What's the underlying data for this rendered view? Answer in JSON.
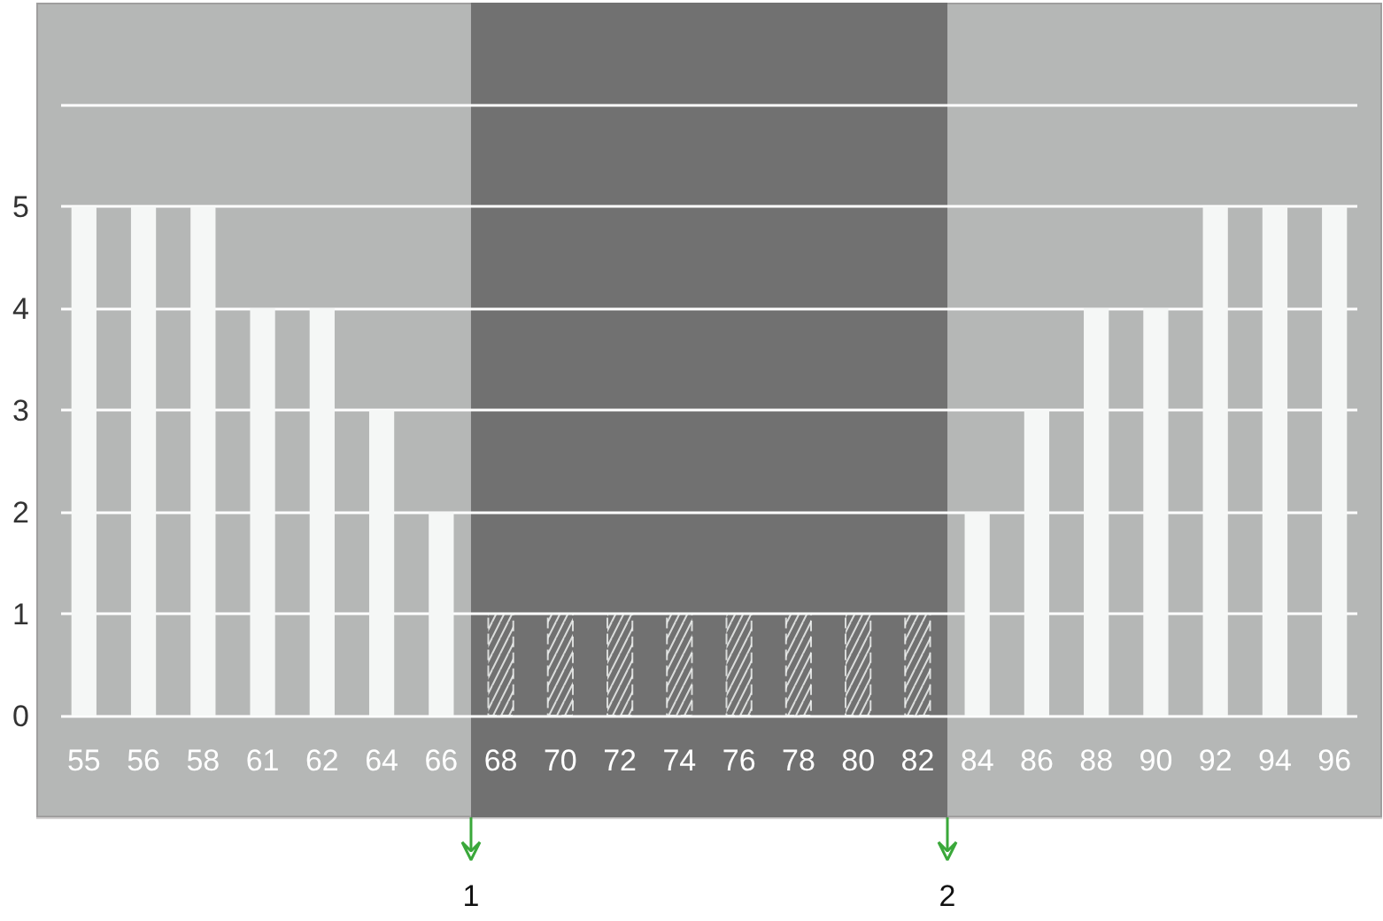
{
  "chart_data": {
    "type": "bar",
    "categories": [
      "55",
      "56",
      "58",
      "61",
      "62",
      "64",
      "66",
      "68",
      "70",
      "72",
      "74",
      "76",
      "78",
      "80",
      "82",
      "84",
      "86",
      "88",
      "90",
      "92",
      "94",
      "96"
    ],
    "values": [
      5,
      5,
      5,
      4,
      4,
      3,
      2,
      1,
      1,
      1,
      1,
      1,
      1,
      1,
      1,
      2,
      3,
      4,
      4,
      5,
      5,
      5
    ],
    "color": "#f5f7f6",
    "ylim": [
      -1,
      7
    ],
    "yticks": [
      0,
      1,
      2,
      3,
      4,
      5,
      {
        "value": 6,
        "label": null
      }
    ],
    "grid": "y",
    "bands": [
      {
        "axis": "x",
        "from": "68",
        "to": "82",
        "color": "#717171"
      }
    ],
    "annotations": [
      "1",
      "2"
    ]
  }
}
